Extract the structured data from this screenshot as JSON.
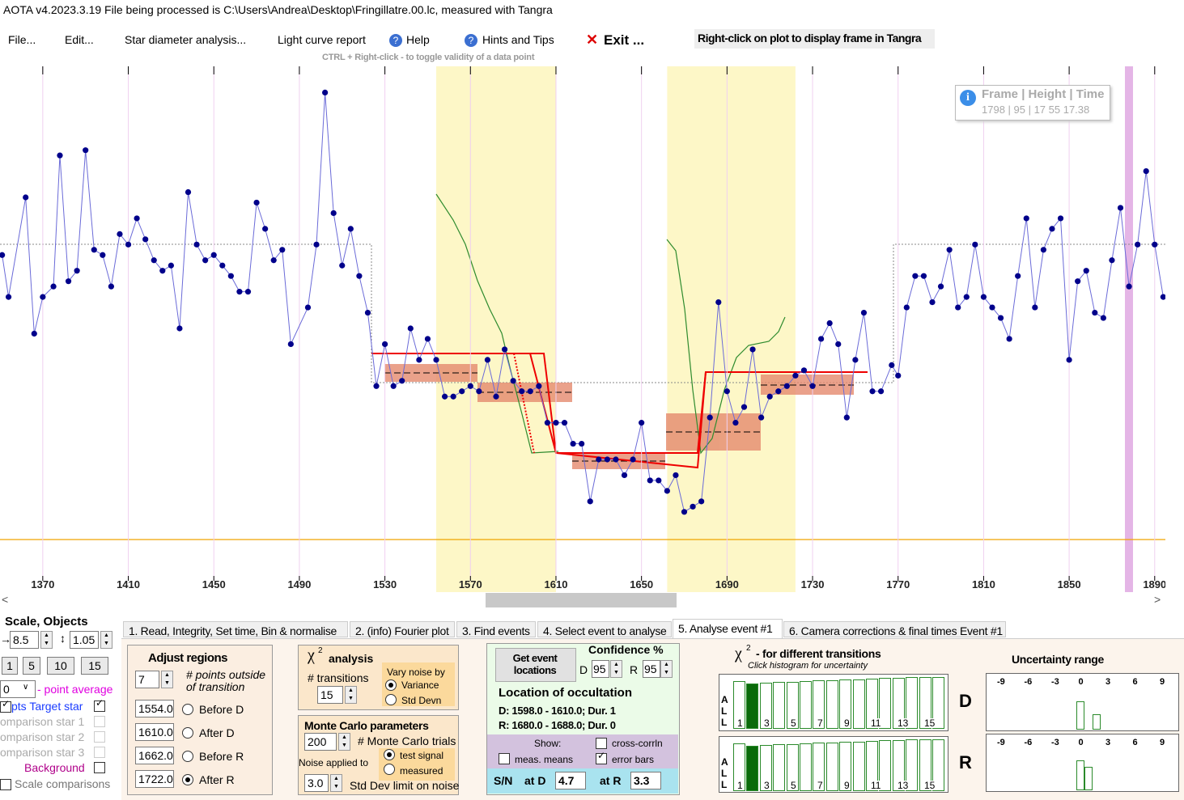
{
  "title_bar": "AOTA v4.2023.3.19   File being processed is C:\\Users\\Andrea\\Desktop\\Fringillatre.00.lc, measured with Tangra",
  "menu": [
    "File...",
    "Edit...",
    "Star diameter analysis...",
    "Light curve report",
    "Help",
    "Hints and Tips",
    "Exit ..."
  ],
  "plot_hint": "Right-click on plot to display frame in Tangra",
  "toggle_hint": "CTRL + Right-click  -  to toggle validity of a data point",
  "tooltip": {
    "header": "Frame | Height | Time",
    "value": "1798 | 95 | 17 55 17.38"
  },
  "chart_data": {
    "type": "line",
    "x": [
      1351,
      1354,
      1362,
      1366,
      1370,
      1375,
      1378,
      1382,
      1386,
      1390,
      1394,
      1398,
      1402,
      1406,
      1410,
      1414,
      1418,
      1422,
      1426,
      1430,
      1434,
      1438,
      1442,
      1446,
      1450,
      1454,
      1458,
      1462,
      1466,
      1470,
      1474,
      1478,
      1482,
      1486,
      1494,
      1498,
      1502,
      1506,
      1510,
      1514,
      1518,
      1522,
      1526,
      1530,
      1534,
      1538,
      1542,
      1546,
      1550,
      1554,
      1558,
      1562,
      1566,
      1570,
      1574,
      1578,
      1582,
      1586,
      1590,
      1594,
      1598,
      1602,
      1606,
      1610,
      1614,
      1618,
      1622,
      1626,
      1630,
      1634,
      1638,
      1642,
      1646,
      1650,
      1654,
      1658,
      1662,
      1666,
      1670,
      1674,
      1678,
      1682,
      1686,
      1690,
      1694,
      1698,
      1702,
      1706,
      1710,
      1714,
      1718,
      1722,
      1726,
      1730,
      1734,
      1738,
      1742,
      1746,
      1750,
      1754,
      1758,
      1762,
      1767,
      1770,
      1774,
      1778,
      1782,
      1786,
      1790,
      1794,
      1798,
      1802,
      1806,
      1810,
      1814,
      1818,
      1822,
      1826,
      1830,
      1834,
      1838,
      1842,
      1846,
      1850,
      1854,
      1858,
      1862,
      1866,
      1870,
      1874,
      1878,
      1882,
      1886,
      1890,
      1894
    ],
    "values": [
      64,
      56,
      75,
      49,
      56,
      58,
      83,
      59,
      61,
      84,
      65,
      64,
      58,
      68,
      66,
      71,
      67,
      63,
      61,
      62,
      50,
      76,
      66,
      63,
      64,
      62,
      60,
      57,
      57,
      74,
      69,
      63,
      65,
      47,
      54,
      66,
      95,
      72,
      62,
      69,
      60,
      53,
      39,
      47,
      39,
      40,
      50,
      44,
      48,
      44,
      37,
      37,
      38,
      39,
      38,
      44,
      37,
      46,
      40,
      38,
      38,
      39,
      32,
      32,
      32,
      28,
      28,
      17,
      25,
      25,
      25,
      22,
      25,
      32,
      21,
      21,
      19,
      22,
      15,
      16,
      17,
      33,
      55,
      38,
      32,
      35,
      46,
      33,
      37,
      38,
      39,
      41,
      42,
      39,
      48,
      51,
      47,
      33,
      44,
      53,
      38,
      38,
      43,
      41,
      54,
      60,
      60,
      55,
      58,
      65,
      54,
      56,
      66,
      56,
      54,
      52,
      48,
      60,
      71,
      54,
      65,
      69,
      71,
      44,
      59,
      61,
      53,
      52,
      63,
      73,
      58,
      66,
      80,
      66,
      56
    ],
    "color": "#00008b",
    "line_color": "#6b6bd8",
    "xlim": [
      1350,
      1895
    ],
    "ylim": [
      0,
      100
    ],
    "xticks": [
      1370,
      1410,
      1450,
      1490,
      1530,
      1570,
      1610,
      1650,
      1690,
      1730,
      1770,
      1810,
      1850,
      1890
    ]
  },
  "objects_panel": {
    "title": "Scale,  Objects",
    "x_scale": "8.5",
    "y_scale": "1.05",
    "steps": [
      "1",
      "5",
      "10",
      "15"
    ],
    "point_average": "0",
    "point_average_label": "- point average",
    "target": "pts  Target star",
    "comparisons": [
      "omparison star 1",
      "omparison star 2",
      "omparison star 3"
    ],
    "background": "Background",
    "scale_comparisons": "Scale comparisons"
  },
  "tabs": [
    "1.  Read, Integrity, Set time, Bin & normalise",
    "2. (info) Fourier plot",
    "3. Find events",
    "4. Select event to analyse",
    "5. Analyse event #1",
    "6. Camera corrections & final times Event #1"
  ],
  "adjust_regions": {
    "title": "Adjust regions",
    "points_outside": "7",
    "points_outside_label": "# points outside of transition",
    "regions": [
      {
        "value": "1554.0",
        "label": "Before D"
      },
      {
        "value": "1610.0",
        "label": "After D"
      },
      {
        "value": "1662.0",
        "label": "Before R"
      },
      {
        "value": "1722.0",
        "label": "After R"
      }
    ]
  },
  "chi_symbol": "χ",
  "chi_exponent": "2",
  "chi2_analysis": {
    "title": "analysis",
    "transitions_label": "# transitions",
    "transitions": "15",
    "vary_noise_label": "Vary noise by",
    "options": [
      "Variance",
      "Std Devn"
    ]
  },
  "monte_carlo": {
    "title": "Monte Carlo parameters",
    "trials": "200",
    "trials_label": "# Monte Carlo trials",
    "noise_label": "Noise applied to",
    "options": [
      "test signal",
      "measured"
    ],
    "limit": "3.0",
    "limit_label": "Std Dev limit on noise"
  },
  "event": {
    "button": "Get event locations",
    "confidence_label": "Confidence %",
    "d": "D",
    "d_conf": "95",
    "r": "R",
    "r_conf": "95",
    "location_title": "Location of occultation",
    "location_d": "D: 1598.0 - 1610.0; Dur. 1",
    "location_r": "R: 1680.0 - 1688.0; Dur. 0",
    "show_label": "Show:",
    "cross": "cross-corrln",
    "means": "meas. means",
    "error_bars": "error bars",
    "sn": "S/N",
    "at_d": "at D",
    "sn_d": "4.7",
    "at_r": "at R",
    "sn_r": "3.3"
  },
  "chi2_transitions": {
    "title": "- for different transitions",
    "hint": "Click histogram for uncertainty",
    "all": "ALL",
    "ticks": [
      "1",
      "3",
      "5",
      "7",
      "9",
      "11",
      "13",
      "15"
    ],
    "d": "D",
    "r": "R"
  },
  "uncertainty": {
    "title": "Uncertainty range",
    "ticks": [
      "-9",
      "-6",
      "-3",
      "0",
      "3",
      "6",
      "9"
    ]
  }
}
